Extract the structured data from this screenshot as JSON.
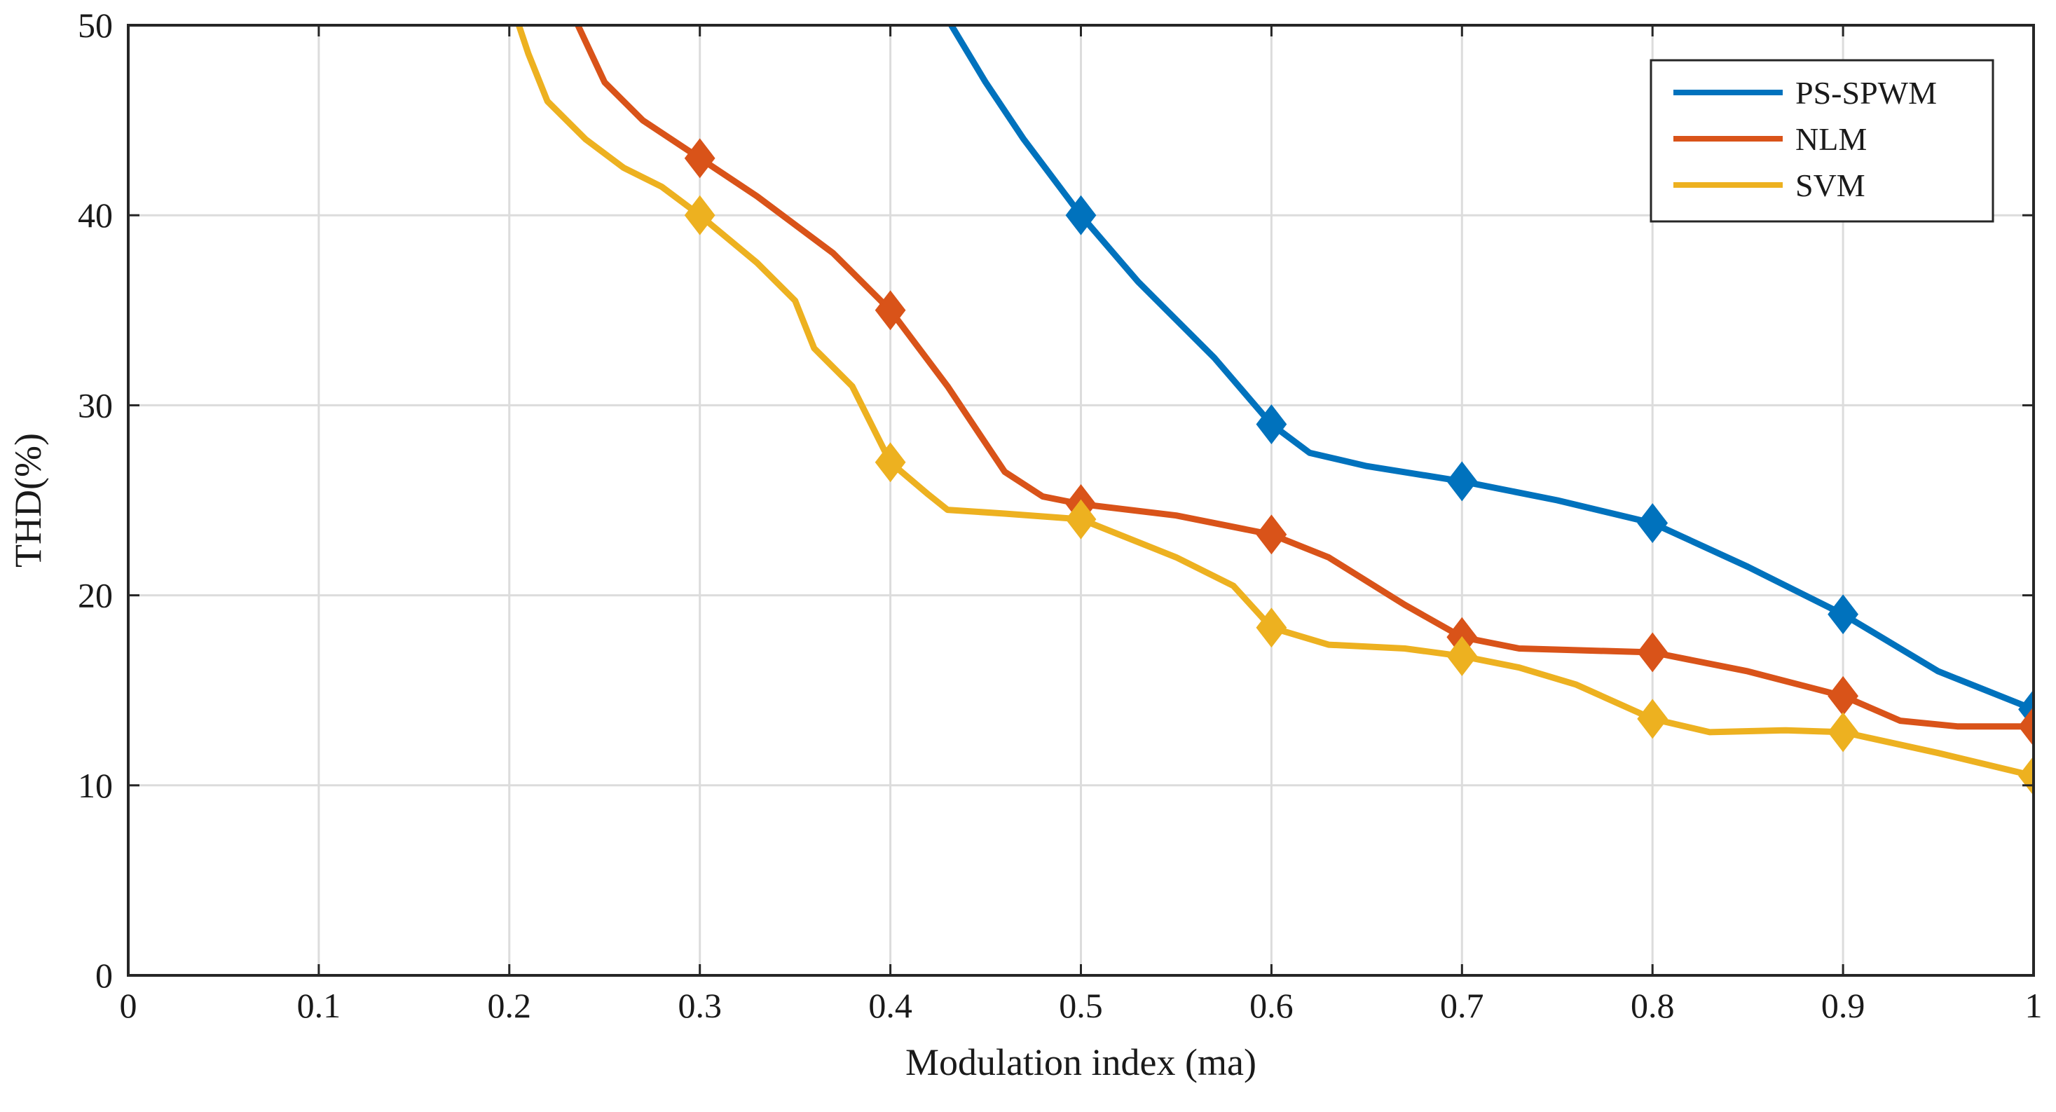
{
  "chart_data": {
    "type": "line",
    "title": "",
    "xlabel": "Modulation index (ma)",
    "ylabel": "THD(%)",
    "xlim": [
      0,
      1
    ],
    "ylim": [
      0,
      50
    ],
    "xticks": [
      0,
      0.1,
      0.2,
      0.3,
      0.4,
      0.5,
      0.6,
      0.7,
      0.8,
      0.9,
      1
    ],
    "xtick_labels": [
      "0",
      "0.1",
      "0.2",
      "0.3",
      "0.4",
      "0.5",
      "0.6",
      "0.7",
      "0.8",
      "0.9",
      "1"
    ],
    "yticks": [
      0,
      10,
      20,
      30,
      40,
      50
    ],
    "ytick_labels": [
      "0",
      "10",
      "20",
      "30",
      "40",
      "50"
    ],
    "grid": true,
    "legend_position": "top-right",
    "series": [
      {
        "name": "PS-SPWM",
        "color": "#0072BD",
        "curve": [
          [
            0.432,
            50
          ],
          [
            0.45,
            47
          ],
          [
            0.47,
            44
          ],
          [
            0.5,
            40
          ],
          [
            0.53,
            36.5
          ],
          [
            0.57,
            32.5
          ],
          [
            0.6,
            29
          ],
          [
            0.62,
            27.5
          ],
          [
            0.65,
            26.8
          ],
          [
            0.7,
            26
          ],
          [
            0.75,
            25
          ],
          [
            0.8,
            23.8
          ],
          [
            0.85,
            21.5
          ],
          [
            0.9,
            19
          ],
          [
            0.95,
            16
          ],
          [
            1.0,
            14
          ]
        ],
        "marker_x": [
          0.5,
          0.6,
          0.7,
          0.8,
          0.9,
          1.0
        ],
        "marker_y": [
          40,
          29,
          26,
          23.8,
          19,
          14
        ]
      },
      {
        "name": "NLM",
        "color": "#D95319",
        "curve": [
          [
            0.236,
            50
          ],
          [
            0.25,
            47
          ],
          [
            0.27,
            45
          ],
          [
            0.3,
            43
          ],
          [
            0.33,
            41
          ],
          [
            0.37,
            38
          ],
          [
            0.4,
            35
          ],
          [
            0.43,
            31
          ],
          [
            0.46,
            26.5
          ],
          [
            0.48,
            25.2
          ],
          [
            0.5,
            24.8
          ],
          [
            0.55,
            24.2
          ],
          [
            0.6,
            23.2
          ],
          [
            0.63,
            22
          ],
          [
            0.67,
            19.5
          ],
          [
            0.7,
            17.8
          ],
          [
            0.73,
            17.2
          ],
          [
            0.8,
            17
          ],
          [
            0.85,
            16
          ],
          [
            0.9,
            14.7
          ],
          [
            0.93,
            13.4
          ],
          [
            0.96,
            13.1
          ],
          [
            1.0,
            13.1
          ]
        ],
        "marker_x": [
          0.3,
          0.4,
          0.5,
          0.6,
          0.7,
          0.8,
          0.9,
          1.0
        ],
        "marker_y": [
          43,
          35,
          24.8,
          23.2,
          17.8,
          17,
          14.7,
          13.1
        ]
      },
      {
        "name": "SVM",
        "color": "#EDB120",
        "curve": [
          [
            0.205,
            50
          ],
          [
            0.21,
            48.5
          ],
          [
            0.22,
            46
          ],
          [
            0.24,
            44
          ],
          [
            0.26,
            42.5
          ],
          [
            0.28,
            41.5
          ],
          [
            0.3,
            40
          ],
          [
            0.33,
            37.5
          ],
          [
            0.35,
            35.5
          ],
          [
            0.36,
            33
          ],
          [
            0.38,
            31
          ],
          [
            0.4,
            27
          ],
          [
            0.42,
            25.3
          ],
          [
            0.43,
            24.5
          ],
          [
            0.46,
            24.3
          ],
          [
            0.5,
            24
          ],
          [
            0.55,
            22
          ],
          [
            0.58,
            20.5
          ],
          [
            0.6,
            18.3
          ],
          [
            0.63,
            17.4
          ],
          [
            0.67,
            17.2
          ],
          [
            0.7,
            16.8
          ],
          [
            0.73,
            16.2
          ],
          [
            0.76,
            15.3
          ],
          [
            0.8,
            13.5
          ],
          [
            0.83,
            12.8
          ],
          [
            0.87,
            12.9
          ],
          [
            0.9,
            12.8
          ],
          [
            0.95,
            11.7
          ],
          [
            1.0,
            10.5
          ]
        ],
        "marker_x": [
          0.3,
          0.4,
          0.5,
          0.6,
          0.7,
          0.8,
          0.9,
          1.0
        ],
        "marker_y": [
          40,
          27,
          24,
          18.3,
          16.8,
          13.5,
          12.8,
          10.5
        ]
      }
    ]
  }
}
